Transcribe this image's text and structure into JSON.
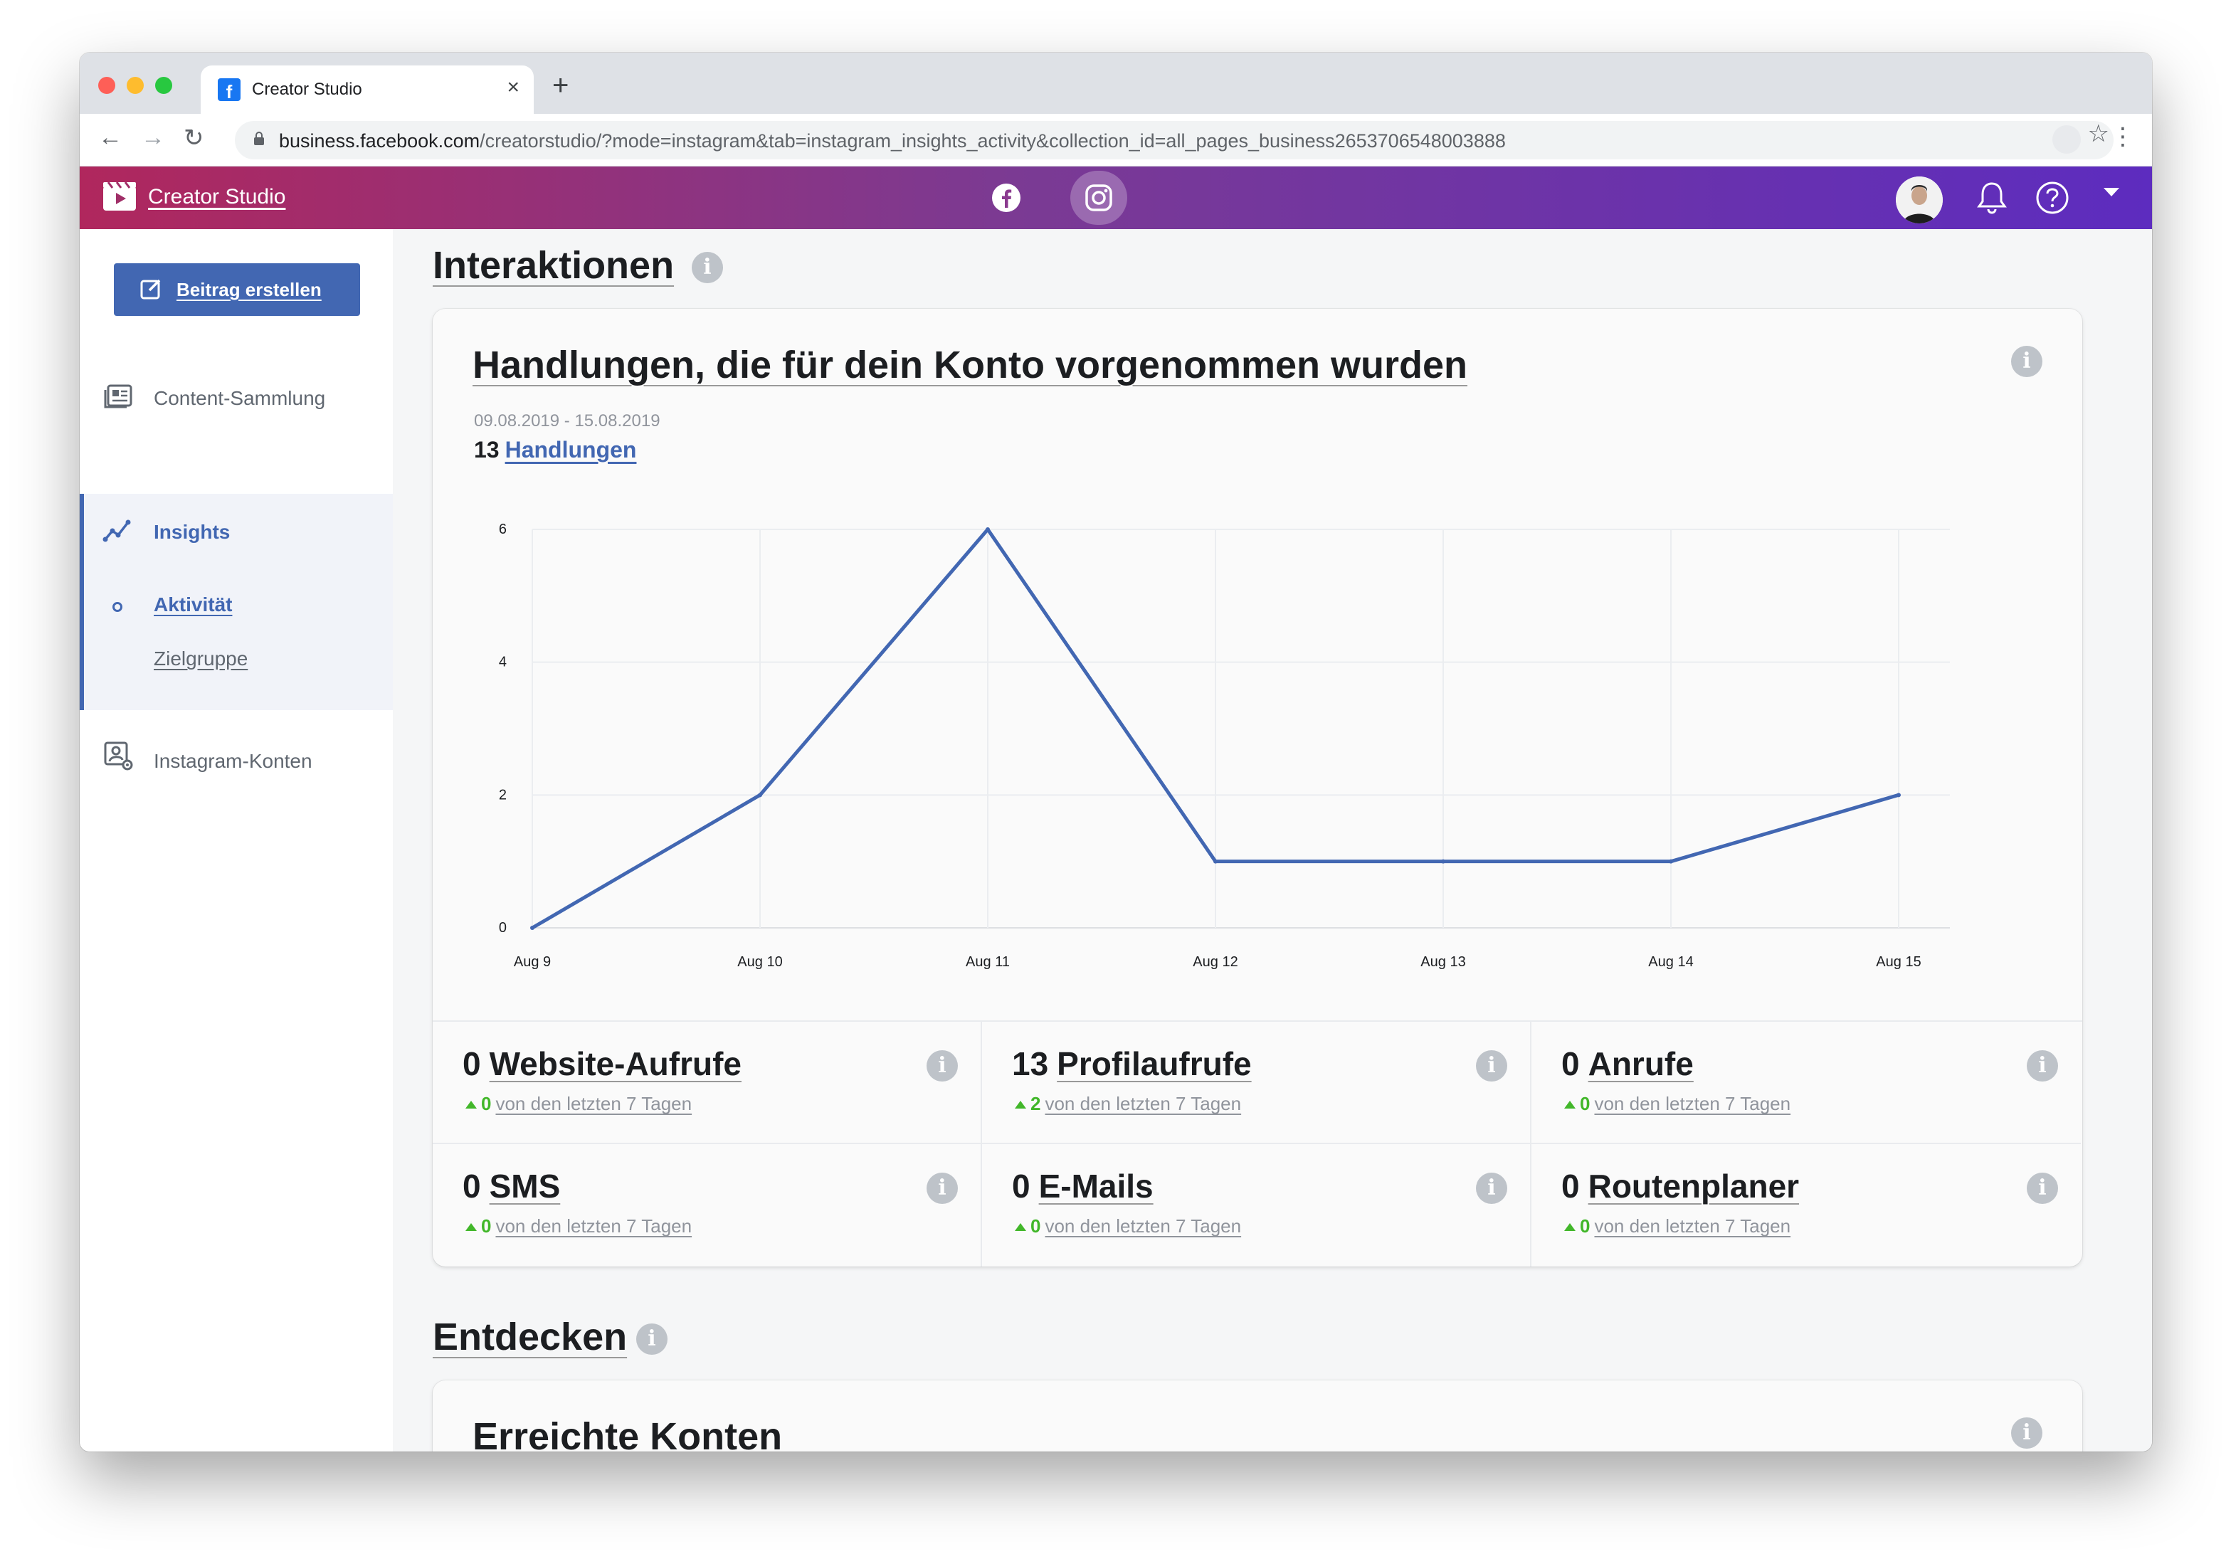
{
  "browser": {
    "tab_title": "Creator Studio",
    "new_tab": "+",
    "close_tab": "×",
    "url_host": "business.facebook.com",
    "url_path": "/creatorstudio/?mode=instagram&tab=instagram_insights_activity&collection_id=all_pages_business2653706548003888"
  },
  "header": {
    "app_title": "Creator Studio"
  },
  "sidebar": {
    "create_button": "Beitrag erstellen",
    "items": [
      {
        "label": "Content-Sammlung"
      },
      {
        "label": "Insights"
      },
      {
        "label": "Aktivität"
      },
      {
        "label": "Zielgruppe"
      },
      {
        "label": "Instagram-Konten"
      }
    ]
  },
  "main": {
    "section1_title": "Interaktionen",
    "card_title": "Handlungen, die für dein Konto vorgenommen wurden",
    "date_range": "09.08.2019 - 15.08.2019",
    "total_value": "13",
    "total_label": "Handlungen",
    "metrics": [
      {
        "value": "0",
        "name": "Website-Aufrufe",
        "delta": "0",
        "desc": "von den letzten 7 Tagen"
      },
      {
        "value": "13",
        "name": "Profilaufrufe",
        "delta": "2",
        "desc": "von den letzten 7 Tagen"
      },
      {
        "value": "0",
        "name": "Anrufe",
        "delta": "0",
        "desc": "von den letzten 7 Tagen"
      },
      {
        "value": "0",
        "name": "SMS",
        "delta": "0",
        "desc": "von den letzten 7 Tagen"
      },
      {
        "value": "0",
        "name": "E-Mails",
        "delta": "0",
        "desc": "von den letzten 7 Tagen"
      },
      {
        "value": "0",
        "name": "Routenplaner",
        "delta": "0",
        "desc": "von den letzten 7 Tagen"
      }
    ],
    "section2_title": "Entdecken",
    "card2_title": "Erreichte Konten"
  },
  "chart_data": {
    "type": "line",
    "categories": [
      "Aug 9",
      "Aug 10",
      "Aug 11",
      "Aug 12",
      "Aug 13",
      "Aug 14",
      "Aug 15"
    ],
    "series": [
      {
        "values": [
          0,
          2,
          6,
          1,
          1,
          1,
          2
        ]
      }
    ],
    "yticks": [
      0,
      2,
      4,
      6
    ],
    "ylim": [
      0,
      6
    ],
    "grid": true,
    "line_color": "#4267b2"
  },
  "icons": {
    "info": "i"
  }
}
